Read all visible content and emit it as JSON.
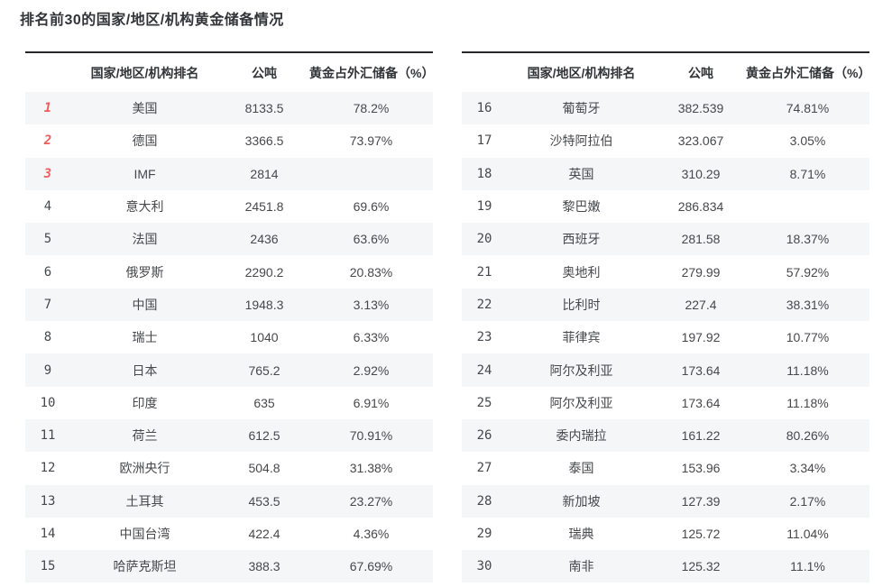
{
  "page_title": "排名前30的国家/地区/机构黄金储备情况",
  "columns": {
    "rank": "",
    "name": "国家/地区/机构排名",
    "tons": "公吨",
    "pct": "黄金占外汇储备（%）"
  },
  "colors": {
    "accent_red": "#ef5a5a",
    "rank_gray": "#7e7f83",
    "row_alt_bg": "#f5f6f7",
    "border_dark": "#26282b",
    "text_dark": "#47484c"
  },
  "left_table": {
    "rows": [
      {
        "rank": "1",
        "name": "美国",
        "tons": "8133.5",
        "pct": "78.2%"
      },
      {
        "rank": "2",
        "name": "德国",
        "tons": "3366.5",
        "pct": "73.97%"
      },
      {
        "rank": "3",
        "name": "IMF",
        "tons": "2814",
        "pct": ""
      },
      {
        "rank": "4",
        "name": "意大利",
        "tons": "2451.8",
        "pct": "69.6%"
      },
      {
        "rank": "5",
        "name": "法国",
        "tons": "2436",
        "pct": "63.6%"
      },
      {
        "rank": "6",
        "name": "俄罗斯",
        "tons": "2290.2",
        "pct": "20.83%"
      },
      {
        "rank": "7",
        "name": "中国",
        "tons": "1948.3",
        "pct": "3.13%"
      },
      {
        "rank": "8",
        "name": "瑞士",
        "tons": "1040",
        "pct": "6.33%"
      },
      {
        "rank": "9",
        "name": "日本",
        "tons": "765.2",
        "pct": "2.92%"
      },
      {
        "rank": "10",
        "name": "印度",
        "tons": "635",
        "pct": "6.91%"
      },
      {
        "rank": "11",
        "name": "荷兰",
        "tons": "612.5",
        "pct": "70.91%"
      },
      {
        "rank": "12",
        "name": "欧洲央行",
        "tons": "504.8",
        "pct": "31.38%"
      },
      {
        "rank": "13",
        "name": "土耳其",
        "tons": "453.5",
        "pct": "23.27%"
      },
      {
        "rank": "14",
        "name": "中国台湾",
        "tons": "422.4",
        "pct": "4.36%"
      },
      {
        "rank": "15",
        "name": "哈萨克斯坦",
        "tons": "388.3",
        "pct": "67.69%"
      }
    ]
  },
  "right_table": {
    "rows": [
      {
        "rank": "16",
        "name": "葡萄牙",
        "tons": "382.539",
        "pct": "74.81%"
      },
      {
        "rank": "17",
        "name": "沙特阿拉伯",
        "tons": "323.067",
        "pct": "3.05%"
      },
      {
        "rank": "18",
        "name": "英国",
        "tons": "310.29",
        "pct": "8.71%"
      },
      {
        "rank": "19",
        "name": "黎巴嫩",
        "tons": "286.834",
        "pct": ""
      },
      {
        "rank": "20",
        "name": "西班牙",
        "tons": "281.58",
        "pct": "18.37%"
      },
      {
        "rank": "21",
        "name": "奥地利",
        "tons": "279.99",
        "pct": "57.92%"
      },
      {
        "rank": "22",
        "name": "比利时",
        "tons": "227.4",
        "pct": "38.31%"
      },
      {
        "rank": "23",
        "name": "菲律宾",
        "tons": "197.92",
        "pct": "10.77%"
      },
      {
        "rank": "24",
        "name": "阿尔及利亚",
        "tons": "173.64",
        "pct": "11.18%"
      },
      {
        "rank": "25",
        "name": "阿尔及利亚",
        "tons": "173.64",
        "pct": "11.18%"
      },
      {
        "rank": "26",
        "name": "委内瑞拉",
        "tons": "161.22",
        "pct": "80.26%"
      },
      {
        "rank": "27",
        "name": "泰国",
        "tons": "153.96",
        "pct": "3.34%"
      },
      {
        "rank": "28",
        "name": "新加坡",
        "tons": "127.39",
        "pct": "2.17%"
      },
      {
        "rank": "29",
        "name": "瑞典",
        "tons": "125.72",
        "pct": "11.04%"
      },
      {
        "rank": "30",
        "name": "南非",
        "tons": "125.32",
        "pct": "11.1%"
      }
    ]
  },
  "chart_data": {
    "type": "table",
    "title": "排名前30的国家/地区/机构黄金储备情况",
    "layout": "two side-by-side tables, ranks 1-15 left, ranks 16-30 right, alternating row shading",
    "columns": [
      "排名",
      "国家/地区/机构排名",
      "公吨",
      "黄金占外汇储备（%）"
    ],
    "rows": [
      [
        1,
        "美国",
        8133.5,
        "78.2%"
      ],
      [
        2,
        "德国",
        3366.5,
        "73.97%"
      ],
      [
        3,
        "IMF",
        2814,
        null
      ],
      [
        4,
        "意大利",
        2451.8,
        "69.6%"
      ],
      [
        5,
        "法国",
        2436,
        "63.6%"
      ],
      [
        6,
        "俄罗斯",
        2290.2,
        "20.83%"
      ],
      [
        7,
        "中国",
        1948.3,
        "3.13%"
      ],
      [
        8,
        "瑞士",
        1040,
        "6.33%"
      ],
      [
        9,
        "日本",
        765.2,
        "2.92%"
      ],
      [
        10,
        "印度",
        635,
        "6.91%"
      ],
      [
        11,
        "荷兰",
        612.5,
        "70.91%"
      ],
      [
        12,
        "欧洲央行",
        504.8,
        "31.38%"
      ],
      [
        13,
        "土耳其",
        453.5,
        "23.27%"
      ],
      [
        14,
        "中国台湾",
        422.4,
        "4.36%"
      ],
      [
        15,
        "哈萨克斯坦",
        388.3,
        "67.69%"
      ],
      [
        16,
        "葡萄牙",
        382.539,
        "74.81%"
      ],
      [
        17,
        "沙特阿拉伯",
        323.067,
        "3.05%"
      ],
      [
        18,
        "英国",
        310.29,
        "8.71%"
      ],
      [
        19,
        "黎巴嫩",
        286.834,
        null
      ],
      [
        20,
        "西班牙",
        281.58,
        "18.37%"
      ],
      [
        21,
        "奥地利",
        279.99,
        "57.92%"
      ],
      [
        22,
        "比利时",
        227.4,
        "38.31%"
      ],
      [
        23,
        "菲律宾",
        197.92,
        "10.77%"
      ],
      [
        24,
        "阿尔及利亚",
        173.64,
        "11.18%"
      ],
      [
        25,
        "阿尔及利亚",
        173.64,
        "11.18%"
      ],
      [
        26,
        "委内瑞拉",
        161.22,
        "80.26%"
      ],
      [
        27,
        "泰国",
        153.96,
        "3.34%"
      ],
      [
        28,
        "新加坡",
        127.39,
        "2.17%"
      ],
      [
        29,
        "瑞典",
        125.72,
        "11.04%"
      ],
      [
        30,
        "南非",
        125.32,
        "11.1%"
      ]
    ]
  }
}
